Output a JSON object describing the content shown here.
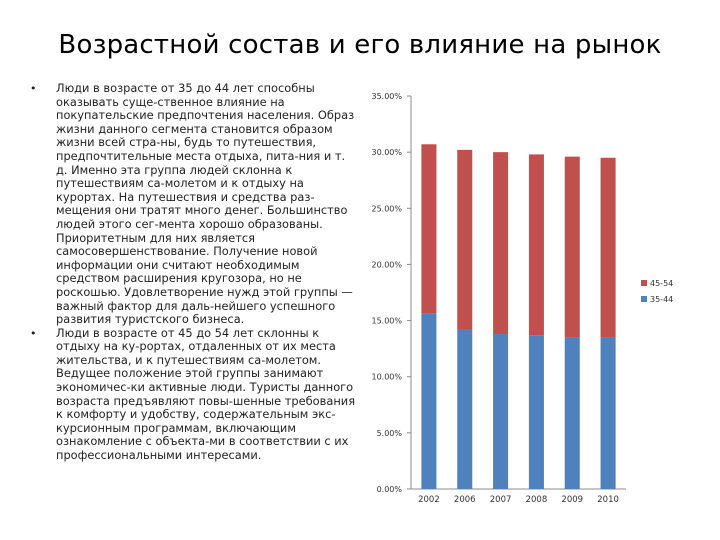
{
  "slide": {
    "title": "Возрастной состав и его влияние на рынок",
    "bullets": [
      {
        "marker": "•",
        "text": "Люди в возрасте от 35 до 44 лет способны оказывать суще-ственное влияние на покупательские предпочтения населения. Образ жизни данного сегмента становится образом жизни всей стра-ны, будь то путешествия, предпочтительные места отдыха, пита-ния и т. д. Именно эта группа людей склонна к путешествиям са-молетом и к отдыху на курортах. На путешествия и средства раз-мещения они тратят много денег. Большинство людей этого сег-мента хорошо образованы. Приоритетным для них является самосовершенствование. Получение новой информации они считают необходимым средством расширения кругозора, но не роскошью. Удовлетворение нужд этой группы — важный фактор для даль-нейшего успешного развития туристского бизнеса."
      },
      {
        "marker": "•",
        "text": "Люди в возрасте от 45 до 54 лет склонны к отдыху на ку-рортах, отдаленных от их места жительства, и к путешествиям са-молетом. Ведущее положение этой группы занимают экономичес-ки активные люди. Туристы данного возраста предъявляют повы-шенные требования к комфорту и удобству, содержательным экс-курсионным программам, включающим ознакомление с объекта-ми в соответствии с их профессиональными интересами."
      }
    ]
  },
  "chart_data": {
    "type": "bar",
    "stacked": true,
    "categories": [
      "2002",
      "2006",
      "2007",
      "2008",
      "2009",
      "2010"
    ],
    "series": [
      {
        "name": "35-44",
        "color": "#4f81bd",
        "values": [
          15.6,
          14.2,
          13.8,
          13.7,
          13.5,
          13.5
        ]
      },
      {
        "name": "45-54",
        "color": "#c0504d",
        "values": [
          15.1,
          16.0,
          16.2,
          16.1,
          16.1,
          16.0
        ]
      }
    ],
    "ylim": [
      0,
      35
    ],
    "yticks": [
      0,
      5,
      10,
      15,
      20,
      25,
      30,
      35
    ],
    "ytick_labels": [
      "0.00%",
      "5.00%",
      "10.00%",
      "15.00%",
      "20.00%",
      "25.00%",
      "30.00%",
      "35.00%"
    ],
    "legend_order": [
      "45-54",
      "35-44"
    ],
    "legend_position": "right",
    "grid": false,
    "xlabel": "",
    "ylabel": ""
  }
}
